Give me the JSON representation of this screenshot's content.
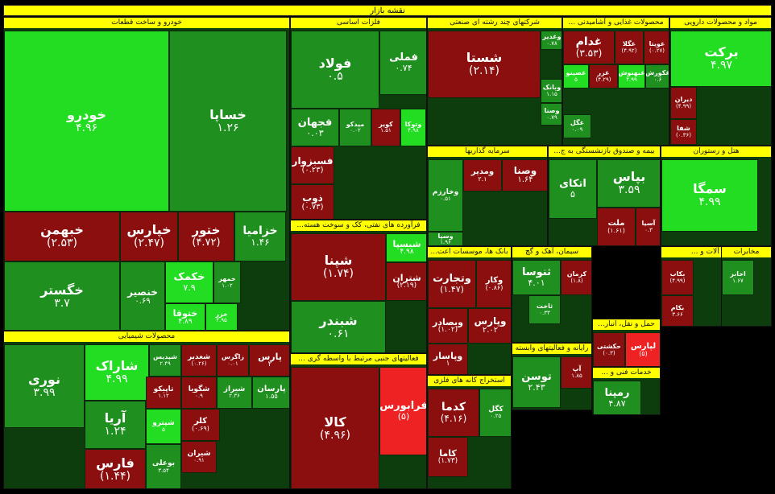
{
  "title": "نقشه بازار",
  "colors": {
    "up_strong": "#22dd22",
    "up": "#1f8f1f",
    "up_dark": "#146414",
    "down": "#8b0f0f",
    "down_strong": "#ee2222",
    "header": "#ffff00"
  },
  "chart_data": {
    "type": "treemap",
    "sectors": [
      {
        "id": "auto",
        "name": "خودرو و ساخت قطعات",
        "stocks": [
          {
            "symbol": "خودرو",
            "change": "۴.۹۶",
            "dir": "up_strong"
          },
          {
            "symbol": "خساپا",
            "change": "۱.۲۶",
            "dir": "up"
          },
          {
            "symbol": "خبهمن",
            "change": "(۲.۵۳)",
            "dir": "down"
          },
          {
            "symbol": "خپارس",
            "change": "(۲.۴۷)",
            "dir": "down"
          },
          {
            "symbol": "ختور",
            "change": "(۴.۷۲)",
            "dir": "down"
          },
          {
            "symbol": "خزامیا",
            "change": "۱.۴۶",
            "dir": "up"
          },
          {
            "symbol": "خگستر",
            "change": "۳.۷",
            "dir": "up"
          },
          {
            "symbol": "خنصیر",
            "change": "۰.۶۹",
            "dir": "up"
          },
          {
            "symbol": "خکمک",
            "change": "۷.۹",
            "dir": "up_strong"
          },
          {
            "symbol": "خمهر",
            "change": "۱.۰۲",
            "dir": "up"
          },
          {
            "symbol": "ختوقا",
            "change": "۴.۸۹",
            "dir": "up_strong"
          },
          {
            "symbol": "خزر",
            "change": "۴.۹۵",
            "dir": "up_strong"
          }
        ]
      },
      {
        "id": "metals",
        "name": "فلزات اساسی",
        "stocks": [
          {
            "symbol": "فولاد",
            "change": "۰.۵",
            "dir": "up"
          },
          {
            "symbol": "فملی",
            "change": "۰.۷۴",
            "dir": "up"
          },
          {
            "symbol": "فجهان",
            "change": "۰.۰۳",
            "dir": "up"
          },
          {
            "symbol": "میدکو",
            "change": "۰.۰۲",
            "dir": "up"
          },
          {
            "symbol": "کویر",
            "change": "۱.۵۱",
            "dir": "down"
          },
          {
            "symbol": "وتوکا",
            "change": "۴.۹۸",
            "dir": "up_strong"
          },
          {
            "symbol": "فسبزوار",
            "change": "(۰.۲۳)",
            "dir": "down"
          },
          {
            "symbol": "ذوب",
            "change": "(۰.۷۳)",
            "dir": "down"
          }
        ]
      },
      {
        "id": "multi",
        "name": "شرکتهای چند رشته ای صنعتی",
        "stocks": [
          {
            "symbol": "شستا",
            "change": "(۲.۱۴)",
            "dir": "down"
          },
          {
            "symbol": "وغدیر",
            "change": "۰.۷۸",
            "dir": "up"
          },
          {
            "symbol": "وبانک",
            "change": "۱.۱۵",
            "dir": "up"
          },
          {
            "symbol": "وصنا",
            "change": "۰.۷۹",
            "dir": "up"
          }
        ]
      },
      {
        "id": "food",
        "name": "محصولات غذایی و آشامیدنی ...",
        "stocks": [
          {
            "symbol": "غدام",
            "change": "(۳.۵۳)",
            "dir": "down"
          },
          {
            "symbol": "غگلا",
            "change": "(۴.۹۲)",
            "dir": "down"
          },
          {
            "symbol": "غویتا",
            "change": "(۰.۲۷)",
            "dir": "down"
          },
          {
            "symbol": "غزر",
            "change": "(۴.۲۹)",
            "dir": "down"
          },
          {
            "symbol": "غصینو",
            "change": "۵",
            "dir": "up_strong"
          },
          {
            "symbol": "غبهنوش",
            "change": "۴.۹۹",
            "dir": "up_strong"
          },
          {
            "symbol": "غکورش",
            "change": "۰.۶",
            "dir": "up"
          },
          {
            "symbol": "غگل",
            "change": "۰.۰۹",
            "dir": "up"
          }
        ]
      },
      {
        "id": "pharma",
        "name": "مواد و محصولات دارویی",
        "stocks": [
          {
            "symbol": "برکت",
            "change": "۴.۹۷",
            "dir": "up_strong"
          },
          {
            "symbol": "دیران",
            "change": "(۴.۹۹)",
            "dir": "down"
          },
          {
            "symbol": "شفا",
            "change": "(۰.۳۶)",
            "dir": "down"
          }
        ]
      },
      {
        "id": "chem",
        "name": "محصولات شیمیایی",
        "stocks": [
          {
            "symbol": "نوری",
            "change": "۳.۹۹",
            "dir": "up"
          },
          {
            "symbol": "شاراک",
            "change": "۴.۹۹",
            "dir": "up_strong"
          },
          {
            "symbol": "شپدیس",
            "change": "۲.۴۹",
            "dir": "up"
          },
          {
            "symbol": "شغدیر",
            "change": "(۰.۲۶)",
            "dir": "down"
          },
          {
            "symbol": "زاگرس",
            "change": "۰.۰۱",
            "dir": "down"
          },
          {
            "symbol": "پارس",
            "change": "۲",
            "dir": "down"
          },
          {
            "symbol": "شگویا",
            "change": "۰.۹",
            "dir": "down"
          },
          {
            "symbol": "شیراز",
            "change": "۲.۳۶",
            "dir": "up"
          },
          {
            "symbol": "تاپیکو",
            "change": "۱.۱۲",
            "dir": "down"
          },
          {
            "symbol": "پارسان",
            "change": "۱.۵۵",
            "dir": "up"
          },
          {
            "symbol": "شپترو",
            "change": "۵",
            "dir": "up_strong"
          },
          {
            "symbol": "آریا",
            "change": "۱.۲۴",
            "dir": "up"
          },
          {
            "symbol": "فارس",
            "change": "(۱.۴۴)",
            "dir": "down"
          },
          {
            "symbol": "بوعلی",
            "change": "۳.۵۴",
            "dir": "up"
          },
          {
            "symbol": "کلر",
            "change": "(۰.۶۹)",
            "dir": "down"
          },
          {
            "symbol": "شیران",
            "change": "۰.۹۱",
            "dir": "down"
          }
        ]
      },
      {
        "id": "construction",
        "name": "فرآورده های نفتی، کک و سوخت هسته...",
        "stocks": [
          {
            "symbol": "شپنا",
            "change": "(۱.۷۴)",
            "dir": "down"
          },
          {
            "symbol": "شبسپا",
            "change": "۴.۹۸",
            "dir": "up_strong"
          },
          {
            "symbol": "شبندر",
            "change": "۰.۶۱",
            "dir": "up"
          },
          {
            "symbol": "شتران",
            "change": "(۲.۱۹)",
            "dir": "down"
          }
        ]
      },
      {
        "id": "invest",
        "name": "سرمایه گذاریها",
        "stocks": [
          {
            "symbol": "وخارزم",
            "change": "۰.۵۱",
            "dir": "up"
          },
          {
            "symbol": "ومدیر",
            "change": "۲.۱",
            "dir": "down"
          },
          {
            "symbol": "وصنا",
            "change": "۱.۶۴",
            "dir": "down"
          },
          {
            "symbol": "وسپا",
            "change": "۱.۹۶",
            "dir": "up"
          }
        ]
      },
      {
        "id": "insurance",
        "name": "بیمه و صندوق بازنشستگی به ج...",
        "stocks": [
          {
            "symbol": "اتکای",
            "change": "۵",
            "dir": "up"
          },
          {
            "symbol": "بپاس",
            "change": "۳.۵۹",
            "dir": "up"
          },
          {
            "symbol": "ملت",
            "change": "(۱.۶۱)",
            "dir": "down"
          },
          {
            "symbol": "آسیا",
            "change": "۰.۳",
            "dir": "down"
          }
        ]
      },
      {
        "id": "hotel",
        "name": "هتل و رستوران",
        "stocks": [
          {
            "symbol": "سمگا",
            "change": "۴.۹۹",
            "dir": "up_strong"
          }
        ]
      },
      {
        "id": "bank",
        "name": "بانک ها، موسسات اعت...",
        "stocks": [
          {
            "symbol": "وتجارت",
            "change": "(۱.۴۷)",
            "dir": "down"
          },
          {
            "symbol": "وکار",
            "change": "(۰.۸۶)",
            "dir": "down"
          },
          {
            "symbol": "وبصادر",
            "change": "(۱.۰۲)",
            "dir": "down"
          },
          {
            "symbol": "وپارس",
            "change": "۲.۰۲",
            "dir": "down"
          },
          {
            "symbol": "وپاسار",
            "change": "۱",
            "dir": "down"
          }
        ]
      },
      {
        "id": "cement",
        "name": "سیمان، آهک و گچ",
        "stocks": [
          {
            "symbol": "ثنوسا",
            "change": "۴.۰۱",
            "dir": "up"
          },
          {
            "symbol": "کرمان",
            "change": "(۱.۸)",
            "dir": "down"
          },
          {
            "symbol": "ثاخت",
            "change": "۰.۳۳",
            "dir": "up"
          }
        ]
      },
      {
        "id": "machinery",
        "name": "ماشین آلات و ...",
        "stocks": [
          {
            "symbol": "بکاب",
            "change": "(۴.۹۹)",
            "dir": "down"
          },
          {
            "symbol": "بکام",
            "change": "۳.۶۶",
            "dir": "down"
          }
        ]
      },
      {
        "id": "mining",
        "name": "استخراج کانه های فلزی",
        "stocks": [
          {
            "symbol": "کدما",
            "change": "(۴.۱۶)",
            "dir": "down"
          },
          {
            "symbol": "کگل",
            "change": "۰.۲۵",
            "dir": "up"
          },
          {
            "symbol": "کاما",
            "change": "(۱.۷۳)",
            "dir": "down"
          }
        ]
      },
      {
        "id": "computer",
        "name": "رایانه و فعالیتهای وابسته",
        "stocks": [
          {
            "symbol": "توسن",
            "change": "۲.۴۳",
            "dir": "up"
          },
          {
            "symbol": "آپ",
            "change": "۱.۸۵",
            "dir": "down"
          }
        ]
      },
      {
        "id": "transport",
        "name": "حمل و نقل، انبار...",
        "stocks": [
          {
            "symbol": "حکشتی",
            "change": "(۰.۳)",
            "dir": "down"
          },
          {
            "symbol": "لپارس",
            "change": "(۵)",
            "dir": "down_strong"
          }
        ]
      },
      {
        "id": "telecom",
        "name": "مخابرات",
        "stocks": [
          {
            "symbol": "اخابر",
            "change": "۱.۶۷",
            "dir": "up"
          }
        ]
      },
      {
        "id": "other_fin",
        "name": "فعالیتهای جنبی مرتبط با واسطه گری ...",
        "stocks": [
          {
            "symbol": "کالا",
            "change": "(۴.۹۶)",
            "dir": "down"
          },
          {
            "symbol": "فرابورس",
            "change": "(۵)",
            "dir": "down_strong"
          }
        ]
      },
      {
        "id": "services",
        "name": "خدمات فنی و ...",
        "stocks": [
          {
            "symbol": "رمپنا",
            "change": "۴.۸۷",
            "dir": "up"
          }
        ]
      }
    ]
  }
}
